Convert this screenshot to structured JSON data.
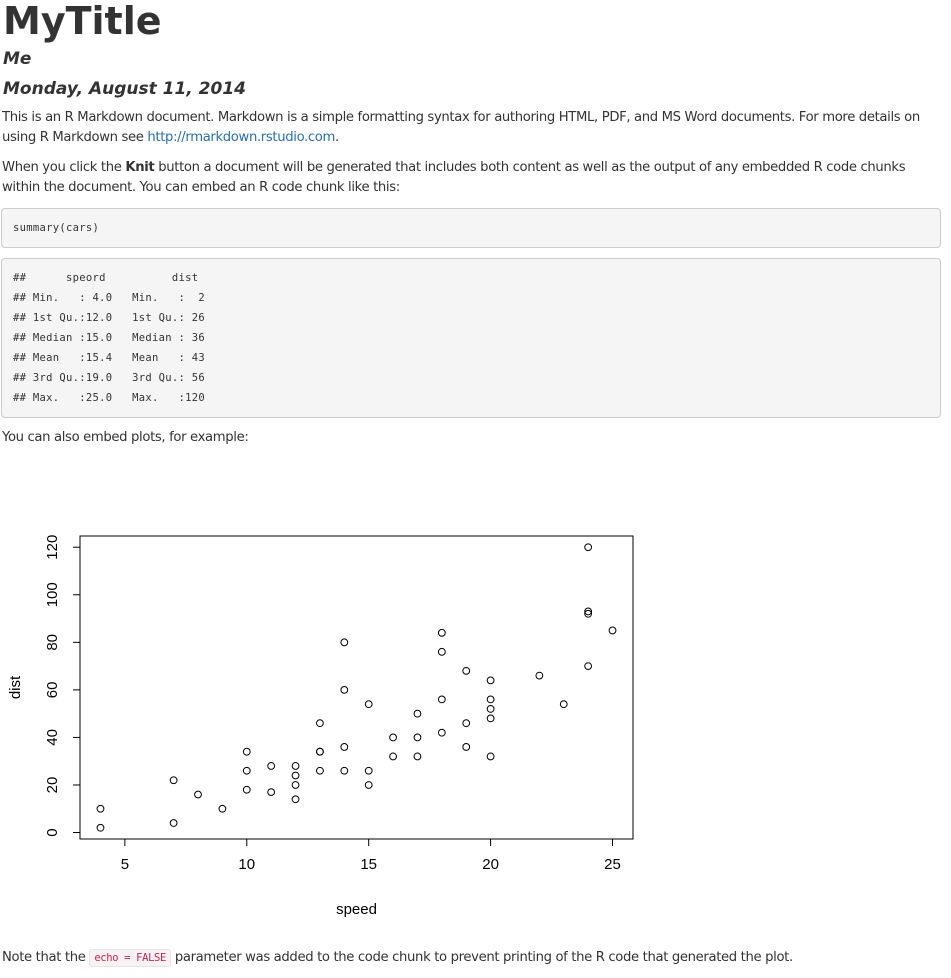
{
  "header": {
    "title": "MyTitle",
    "author": "Me",
    "date": "Monday, August 11, 2014"
  },
  "intro": {
    "text_before_link": "This is an R Markdown document. Markdown is a simple formatting syntax for authoring HTML, PDF, and MS Word documents. For more details on using R Markdown see ",
    "link_text": "http://rmarkdown.rstudio.com",
    "text_after_link": "."
  },
  "knit_paragraph": {
    "before": "When you click the ",
    "bold": "Knit",
    "after": " button a document will be generated that includes both content as well as the output of any embedded R code chunks within the document. You can embed an R code chunk like this:"
  },
  "code_input": "summary(cars)",
  "code_output": [
    "##      speord          dist       ",
    "## Min.   : 4.0   Min.   :  2  ",
    "## 1st Qu.:12.0   1st Qu.: 26  ",
    "## Median :15.0   Median : 36  ",
    "## Mean   :15.4   Mean   : 43  ",
    "## 3rd Qu.:19.0   3rd Qu.: 56  ",
    "## Max.   :25.0   Max.   :120  "
  ],
  "plots_paragraph": "You can also embed plots, for example:",
  "note": {
    "before": "Note that the ",
    "code": "echo = FALSE",
    "after": " parameter was added to the code chunk to prevent printing of the R code that generated the plot."
  },
  "chart_data": {
    "type": "scatter",
    "title": "",
    "xlabel": "speed",
    "ylabel": "dist",
    "xlim": [
      3.16,
      25.84
    ],
    "ylim": [
      -2.72,
      124.72
    ],
    "xticks": [
      5,
      10,
      15,
      20,
      25
    ],
    "yticks": [
      0,
      20,
      40,
      60,
      80,
      100,
      120
    ],
    "grid": false,
    "legend": "none",
    "marker": "open-circle",
    "points": [
      [
        4,
        2
      ],
      [
        4,
        10
      ],
      [
        7,
        4
      ],
      [
        7,
        22
      ],
      [
        8,
        16
      ],
      [
        9,
        10
      ],
      [
        10,
        18
      ],
      [
        10,
        26
      ],
      [
        10,
        34
      ],
      [
        11,
        17
      ],
      [
        11,
        28
      ],
      [
        12,
        14
      ],
      [
        12,
        20
      ],
      [
        12,
        24
      ],
      [
        12,
        28
      ],
      [
        13,
        26
      ],
      [
        13,
        34
      ],
      [
        13,
        34
      ],
      [
        13,
        46
      ],
      [
        14,
        26
      ],
      [
        14,
        36
      ],
      [
        14,
        60
      ],
      [
        14,
        80
      ],
      [
        15,
        20
      ],
      [
        15,
        26
      ],
      [
        15,
        54
      ],
      [
        16,
        32
      ],
      [
        16,
        40
      ],
      [
        17,
        32
      ],
      [
        17,
        40
      ],
      [
        17,
        50
      ],
      [
        18,
        42
      ],
      [
        18,
        56
      ],
      [
        18,
        76
      ],
      [
        18,
        84
      ],
      [
        19,
        36
      ],
      [
        19,
        46
      ],
      [
        19,
        68
      ],
      [
        20,
        32
      ],
      [
        20,
        48
      ],
      [
        20,
        52
      ],
      [
        20,
        56
      ],
      [
        20,
        64
      ],
      [
        22,
        66
      ],
      [
        23,
        54
      ],
      [
        24,
        70
      ],
      [
        24,
        92
      ],
      [
        24,
        93
      ],
      [
        24,
        120
      ],
      [
        25,
        85
      ]
    ]
  }
}
